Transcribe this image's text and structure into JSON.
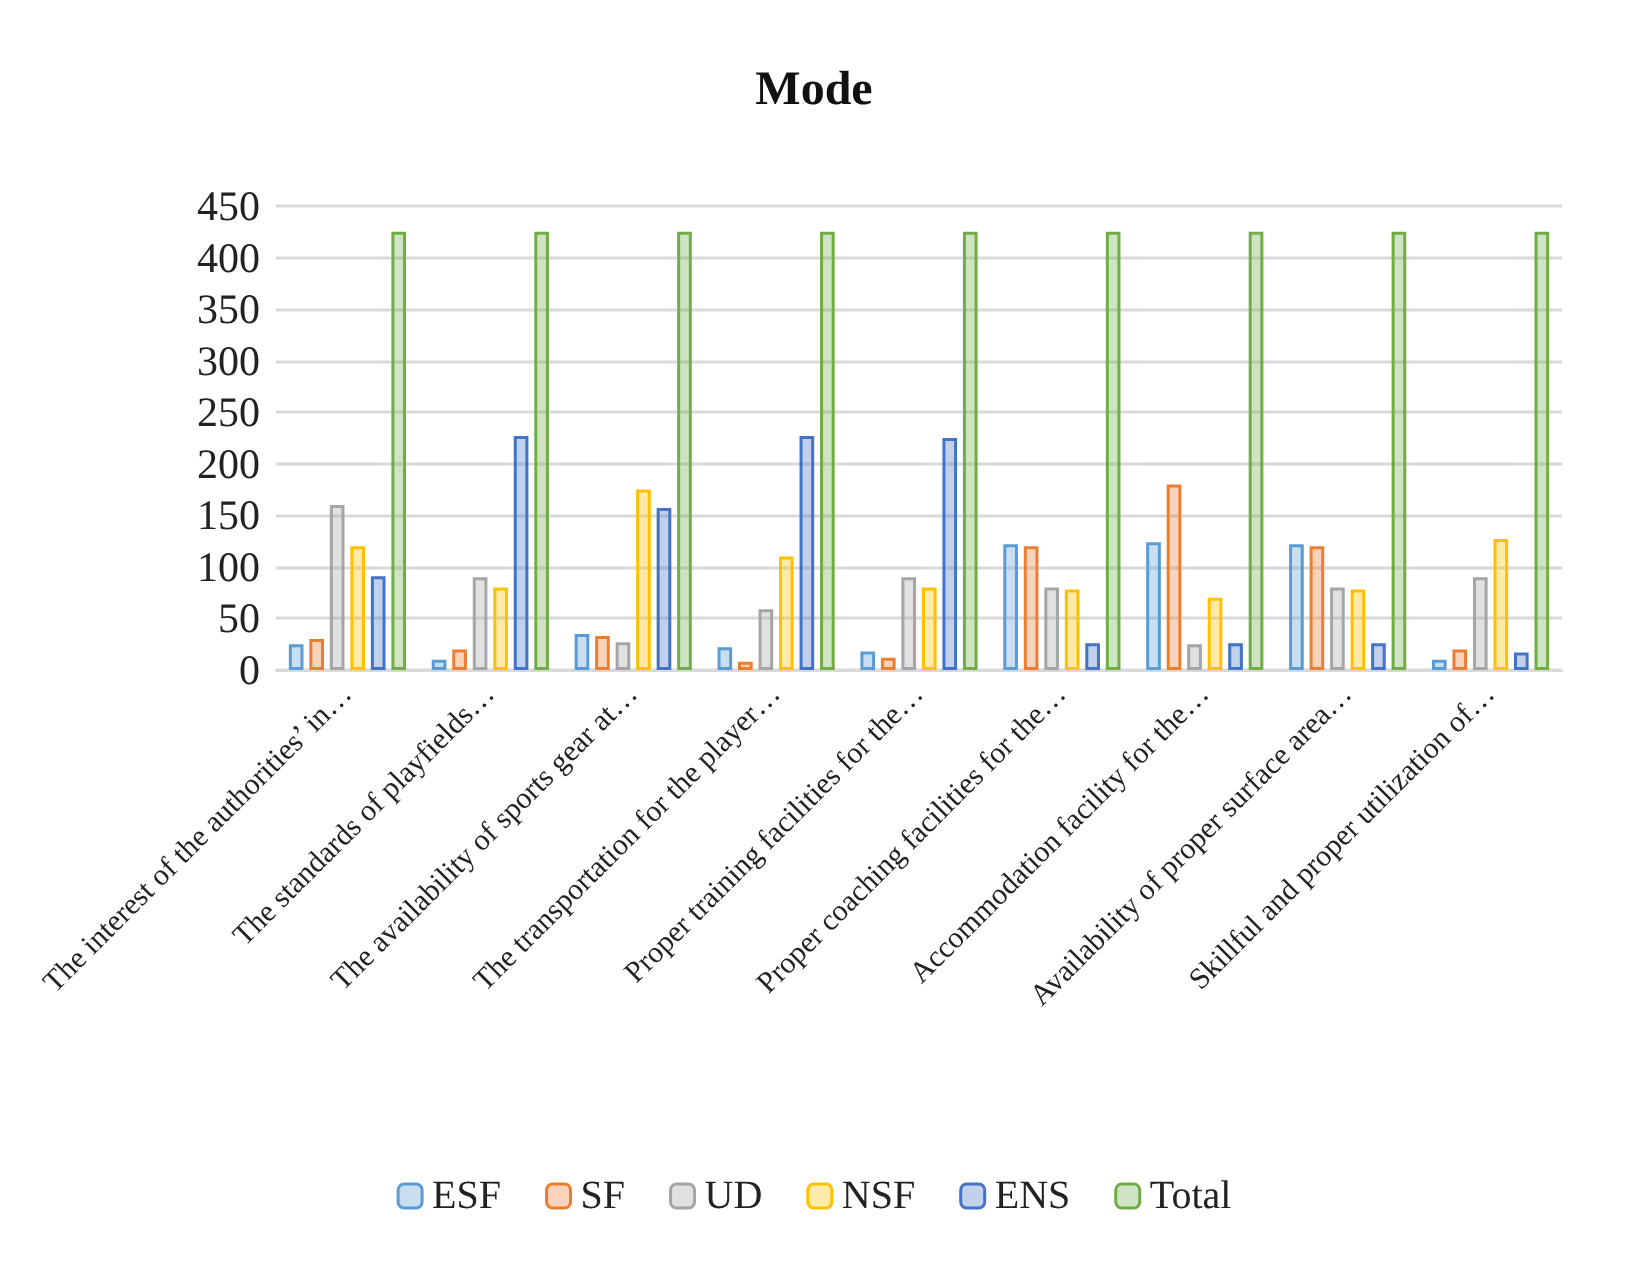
{
  "chart_data": {
    "type": "bar",
    "title": "Mode",
    "categories": [
      "The interest of the authorities’ in…",
      "The standards of playfields…",
      "The availability of sports gear at…",
      "The transportation for the player…",
      "Proper training facilities for the…",
      "Proper coaching facilities for the…",
      "Accommodation facility for the…",
      "Availability of proper surface area…",
      "Skillful and proper utilization of…"
    ],
    "series": [
      {
        "name": "ESF",
        "color": "#5b9bd5",
        "values": [
          25,
          10,
          35,
          22,
          18,
          122,
          124,
          122,
          10
        ]
      },
      {
        "name": "SF",
        "color": "#ed7d31",
        "values": [
          30,
          20,
          33,
          8,
          12,
          120,
          180,
          120,
          20
        ]
      },
      {
        "name": "UD",
        "color": "#a5a5a5",
        "values": [
          160,
          90,
          27,
          59,
          90,
          80,
          25,
          80,
          90
        ]
      },
      {
        "name": "NSF",
        "color": "#ffc000",
        "values": [
          120,
          80,
          175,
          110,
          80,
          78,
          70,
          78,
          127
        ]
      },
      {
        "name": "ENS",
        "color": "#4472c4",
        "values": [
          91,
          227,
          157,
          227,
          225,
          26,
          26,
          26,
          17
        ]
      },
      {
        "name": "Total",
        "color": "#70ad47",
        "values": [
          425,
          425,
          425,
          425,
          425,
          425,
          425,
          425,
          425
        ]
      }
    ],
    "ylim": [
      0,
      450
    ],
    "yticks": [
      0,
      50,
      100,
      150,
      200,
      250,
      300,
      350,
      400,
      450
    ],
    "grid": "y",
    "legend": "bottom"
  }
}
